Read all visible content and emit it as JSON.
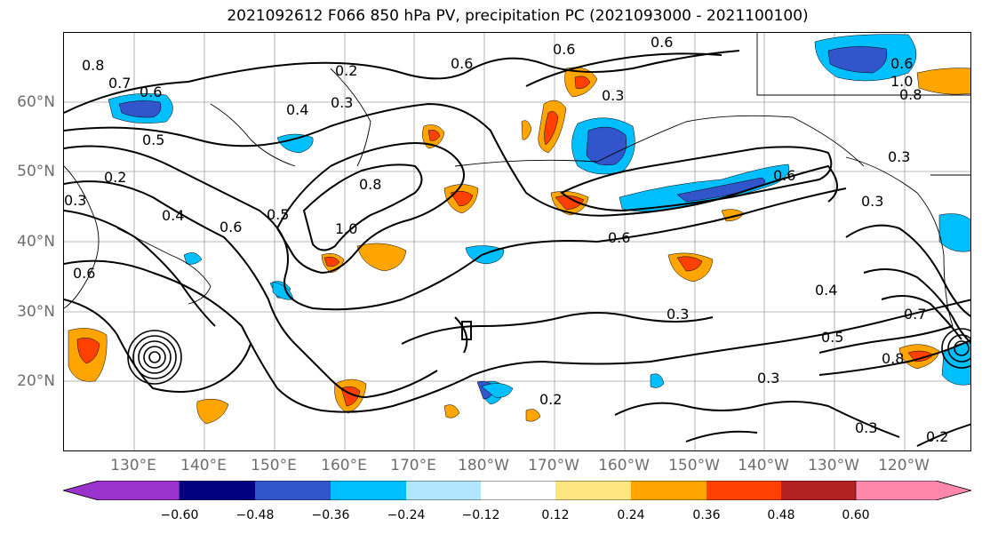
{
  "title": "2021092612 F066 850 hPa PV, precipitation PC (2021093000 - 2021100100)",
  "axes": {
    "lat_labels": [
      "60°N",
      "50°N",
      "40°N",
      "30°N",
      "20°N"
    ],
    "lon_labels": [
      "130°E",
      "140°E",
      "150°E",
      "160°E",
      "170°E",
      "180°W",
      "170°W",
      "160°W",
      "150°W",
      "140°W",
      "130°W",
      "120°W"
    ]
  },
  "contour_labels": [
    "0.8",
    "0.7",
    "0.6",
    "0.5",
    "0.3",
    "0.2",
    "0.4",
    "0.6",
    "0.6",
    "0.2",
    "0.4",
    "0.3",
    "0.6",
    "0.8",
    "0.5",
    "1.0",
    "0.6",
    "0.6",
    "0.3",
    "0.3",
    "0.6",
    "0.3",
    "0.6",
    "0.4",
    "0.5",
    "0.8",
    "0.3",
    "0.2",
    "0.3",
    "0.2",
    "0.6",
    "1.0",
    "0.8",
    "0.7",
    "0.3"
  ],
  "colorbar": {
    "tick_labels": [
      "−0.60",
      "−0.48",
      "−0.36",
      "−0.24",
      "−0.12",
      "0.12",
      "0.24",
      "0.36",
      "0.48",
      "0.60"
    ],
    "colors": [
      "#9933cc",
      "#000080",
      "#3355cc",
      "#00bfff",
      "#b3e5ff",
      "#ffffff",
      "#ffe680",
      "#ffa500",
      "#ff4000",
      "#b22222",
      "#ff88aa"
    ]
  },
  "map": {
    "grid": true,
    "contour_color": "#000000",
    "precip_colors": {
      "neg_strong": "#3355cc",
      "neg_mid": "#00bfff",
      "neg_weak": "#b3e5ff",
      "pos_weak": "#ffe680",
      "pos_mid": "#ffa500",
      "pos_strong": "#ff4000"
    }
  }
}
